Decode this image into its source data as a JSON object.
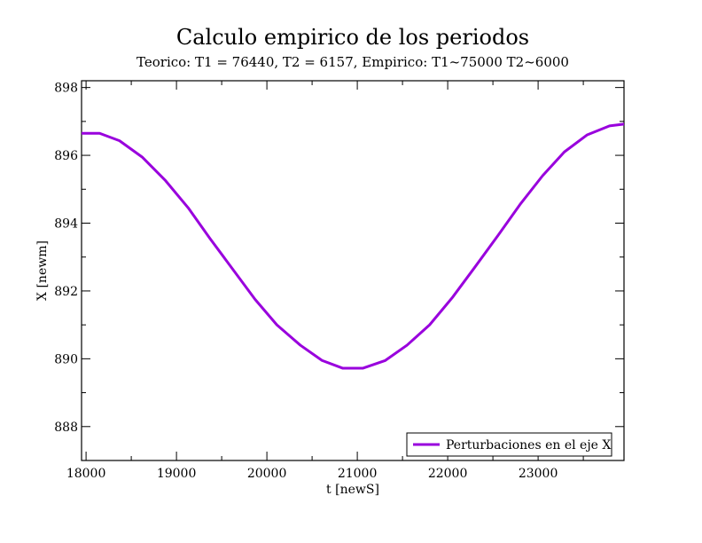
{
  "chart_data": {
    "type": "line",
    "title": "Calculo empirico de los periodos",
    "subtitle": "Teorico: T1 = 76440, T2 = 6157, Empirico: T1~75000 T2~6000",
    "xlabel": "t [newS]",
    "ylabel": "X [newm]",
    "xlim": [
      17950,
      23950
    ],
    "ylim": [
      887,
      898.2
    ],
    "xticks": [
      18000,
      19000,
      20000,
      21000,
      22000,
      23000
    ],
    "yticks": [
      888,
      890,
      892,
      894,
      896,
      898
    ],
    "grid": false,
    "legend": "bottom-right",
    "series": [
      {
        "name": "Perturbaciones en el eje X",
        "color": "#9900dd",
        "x": [
          17950,
          18000,
          18150,
          18370,
          18620,
          18880,
          19130,
          19370,
          19620,
          19870,
          20110,
          20370,
          20610,
          20840,
          21060,
          21310,
          21550,
          21800,
          22050,
          22300,
          22560,
          22800,
          23050,
          23290,
          23540,
          23790,
          23950
        ],
        "y": [
          896.65,
          896.65,
          896.65,
          896.43,
          895.95,
          895.25,
          894.45,
          893.55,
          892.65,
          891.75,
          891.0,
          890.4,
          889.95,
          889.72,
          889.72,
          889.95,
          890.4,
          891.0,
          891.8,
          892.7,
          893.65,
          894.55,
          895.4,
          896.1,
          896.6,
          896.87,
          896.92
        ]
      }
    ]
  }
}
